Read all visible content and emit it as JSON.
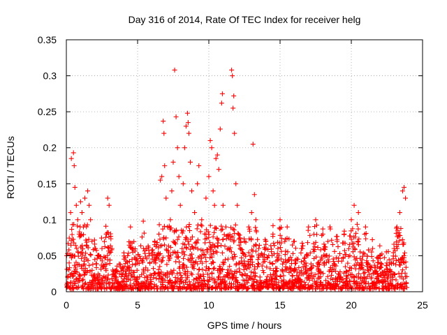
{
  "chart_data": {
    "type": "scatter",
    "title": "Day 316 of 2014, Rate Of TEC Index for receiver helg",
    "xlabel": "GPS time / hours",
    "ylabel": "ROTI / TECUs",
    "xlim": [
      0,
      25
    ],
    "ylim": [
      0,
      0.35
    ],
    "xticks": [
      0,
      5,
      10,
      15,
      20,
      25
    ],
    "xtick_labels": [
      "0",
      "5",
      "10",
      "15",
      "20",
      "25"
    ],
    "yticks": [
      0,
      0.05,
      0.1,
      0.15,
      0.2,
      0.25,
      0.3,
      0.35
    ],
    "ytick_labels": [
      "0",
      "0.05",
      "0.1",
      "0.15",
      "0.2",
      "0.25",
      "0.3",
      "0.35"
    ],
    "grid": true,
    "marker": "+",
    "marker_color": "#ff0000",
    "series": [
      {
        "name": "ROTI",
        "points": [
          [
            0.1,
            0.02
          ],
          [
            0.2,
            0.04
          ],
          [
            0.3,
            0.11
          ],
          [
            0.35,
            0.185
          ],
          [
            0.5,
            0.193
          ],
          [
            0.55,
            0.175
          ],
          [
            0.6,
            0.145
          ],
          [
            0.7,
            0.12
          ],
          [
            0.8,
            0.1
          ],
          [
            0.9,
            0.08
          ],
          [
            1.0,
            0.125
          ],
          [
            1.1,
            0.11
          ],
          [
            1.2,
            0.09
          ],
          [
            1.3,
            0.13
          ],
          [
            1.5,
            0.14
          ],
          [
            1.6,
            0.12
          ],
          [
            1.7,
            0.1
          ],
          [
            1.8,
            0.07
          ],
          [
            2.0,
            0.06
          ],
          [
            2.2,
            0.05
          ],
          [
            2.5,
            0.06
          ],
          [
            2.8,
            0.08
          ],
          [
            2.9,
            0.13
          ],
          [
            3.0,
            0.12
          ],
          [
            3.2,
            0.06
          ],
          [
            3.5,
            0.02
          ],
          [
            4.0,
            0.03
          ],
          [
            4.3,
            0.05
          ],
          [
            4.5,
            0.09
          ],
          [
            4.7,
            0.06
          ],
          [
            5.0,
            0.04
          ],
          [
            5.4,
            0.098
          ],
          [
            5.8,
            0.05
          ],
          [
            6.2,
            0.07
          ],
          [
            6.5,
            0.08
          ],
          [
            6.6,
            0.155
          ],
          [
            6.7,
            0.16
          ],
          [
            6.8,
            0.237
          ],
          [
            6.85,
            0.22
          ],
          [
            6.9,
            0.175
          ],
          [
            7.0,
            0.13
          ],
          [
            7.1,
            0.09
          ],
          [
            7.3,
            0.1
          ],
          [
            7.4,
            0.14
          ],
          [
            7.5,
            0.18
          ],
          [
            7.6,
            0.308
          ],
          [
            7.7,
            0.243
          ],
          [
            7.8,
            0.2
          ],
          [
            7.9,
            0.16
          ],
          [
            8.0,
            0.12
          ],
          [
            8.2,
            0.15
          ],
          [
            8.3,
            0.2
          ],
          [
            8.4,
            0.23
          ],
          [
            8.5,
            0.248
          ],
          [
            8.55,
            0.235
          ],
          [
            8.6,
            0.22
          ],
          [
            8.7,
            0.18
          ],
          [
            8.8,
            0.14
          ],
          [
            9.0,
            0.11
          ],
          [
            9.2,
            0.15
          ],
          [
            9.3,
            0.175
          ],
          [
            9.5,
            0.1
          ],
          [
            9.8,
            0.13
          ],
          [
            10.0,
            0.16
          ],
          [
            10.1,
            0.21
          ],
          [
            10.2,
            0.2
          ],
          [
            10.3,
            0.14
          ],
          [
            10.4,
            0.12
          ],
          [
            10.5,
            0.185
          ],
          [
            10.6,
            0.19
          ],
          [
            10.7,
            0.17
          ],
          [
            10.8,
            0.226
          ],
          [
            10.9,
            0.262
          ],
          [
            10.95,
            0.275
          ],
          [
            11.0,
            0.12
          ],
          [
            11.2,
            0.09
          ],
          [
            11.4,
            0.06
          ],
          [
            11.6,
            0.308
          ],
          [
            11.65,
            0.3
          ],
          [
            11.7,
            0.255
          ],
          [
            11.75,
            0.272
          ],
          [
            11.8,
            0.22
          ],
          [
            11.9,
            0.15
          ],
          [
            12.0,
            0.12
          ],
          [
            12.2,
            0.06
          ],
          [
            12.5,
            0.07
          ],
          [
            12.8,
            0.09
          ],
          [
            13.0,
            0.11
          ],
          [
            13.1,
            0.205
          ],
          [
            13.2,
            0.135
          ],
          [
            13.3,
            0.1
          ],
          [
            13.5,
            0.06
          ],
          [
            14.0,
            0.07
          ],
          [
            14.5,
            0.08
          ],
          [
            15.0,
            0.1
          ],
          [
            15.5,
            0.09
          ],
          [
            16.0,
            0.07
          ],
          [
            16.5,
            0.06
          ],
          [
            17.0,
            0.09
          ],
          [
            17.5,
            0.1
          ],
          [
            18.0,
            0.08
          ],
          [
            18.5,
            0.09
          ],
          [
            19.0,
            0.07
          ],
          [
            19.5,
            0.08
          ],
          [
            20.0,
            0.1
          ],
          [
            20.2,
            0.12
          ],
          [
            20.5,
            0.11
          ],
          [
            21.0,
            0.09
          ],
          [
            21.5,
            0.06
          ],
          [
            22.0,
            0.05
          ],
          [
            22.5,
            0.04
          ],
          [
            23.0,
            0.06
          ],
          [
            23.2,
            0.09
          ],
          [
            23.4,
            0.11
          ],
          [
            23.6,
            0.14
          ],
          [
            23.7,
            0.145
          ],
          [
            23.8,
            0.13
          ]
        ]
      }
    ]
  }
}
